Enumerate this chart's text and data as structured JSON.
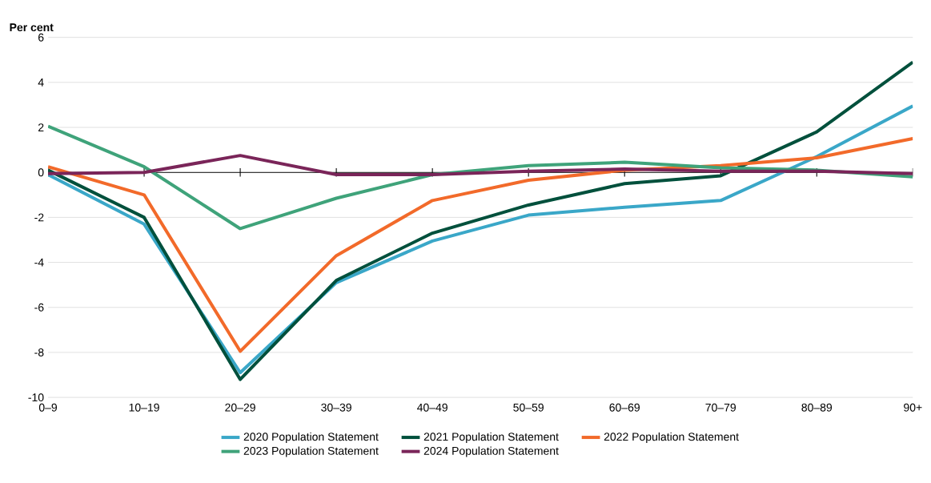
{
  "chart_data": {
    "type": "line",
    "ylabel": "Per cent",
    "categories": [
      "0–9",
      "10–19",
      "20–29",
      "30–39",
      "40–49",
      "50–59",
      "60–69",
      "70–79",
      "80–89",
      "90+"
    ],
    "series": [
      {
        "name": "2020 Population Statement",
        "color": "#3aa7c8",
        "values": [
          -0.1,
          -2.3,
          -8.9,
          -4.9,
          -3.05,
          -1.9,
          -1.55,
          -1.25,
          0.7,
          2.95
        ]
      },
      {
        "name": "2021 Population Statement",
        "color": "#00503c",
        "values": [
          0.1,
          -2.0,
          -9.2,
          -4.8,
          -2.7,
          -1.45,
          -0.5,
          -0.15,
          1.8,
          4.9
        ]
      },
      {
        "name": "2022 Population Statement",
        "color": "#f26a2a",
        "values": [
          0.25,
          -1.0,
          -7.95,
          -3.7,
          -1.25,
          -0.35,
          0.1,
          0.3,
          0.65,
          1.5
        ]
      },
      {
        "name": "2023 Population Statement",
        "color": "#3fa37a",
        "values": [
          2.05,
          0.25,
          -2.5,
          -1.15,
          -0.1,
          0.3,
          0.45,
          0.2,
          0.1,
          -0.2
        ]
      },
      {
        "name": "2024 Population Statement",
        "color": "#7a2559",
        "values": [
          -0.05,
          0.0,
          0.75,
          -0.1,
          -0.1,
          0.05,
          0.15,
          0.05,
          0.05,
          -0.05
        ]
      }
    ],
    "ylim": [
      -10,
      6
    ],
    "yticks": [
      -10,
      -8,
      -6,
      -4,
      -2,
      0,
      2,
      4,
      6
    ],
    "grid": "y",
    "legend": "bottom",
    "marker": "none",
    "line_style": "solid"
  }
}
